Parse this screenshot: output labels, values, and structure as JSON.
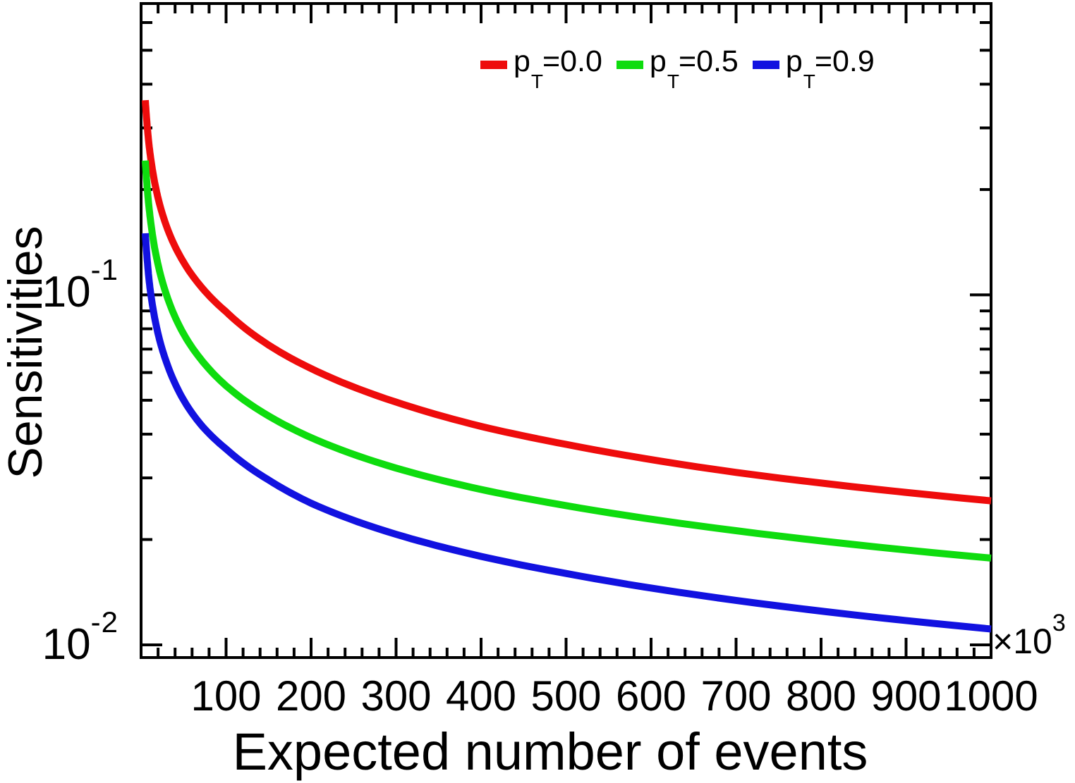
{
  "figure": {
    "background_color": "#ffffff",
    "axis_color": "#000000"
  },
  "chart_data": {
    "type": "line",
    "title": "",
    "xlabel": "Expected number of events",
    "ylabel": "Sensitivities",
    "legend_position": "top-inside",
    "grid": false,
    "x_axis": {
      "scale": "linear",
      "min": 0,
      "max": 1000,
      "unit_multiplier": {
        "prefix": "×10",
        "exponent": "3"
      },
      "major_ticks": [
        100,
        200,
        300,
        400,
        500,
        600,
        700,
        800,
        900,
        1000
      ],
      "minor_tick_step": 20
    },
    "y_axis": {
      "scale": "log",
      "min": 0.0092,
      "max": 0.68,
      "major_ticks": [
        {
          "value": 0.1,
          "label_base": "10",
          "label_exponent": "-1"
        },
        {
          "value": 0.01,
          "label_base": "10",
          "label_exponent": "-2"
        }
      ],
      "minor_ticks": [
        0.6,
        0.5,
        0.4,
        0.3,
        0.2,
        0.09,
        0.08,
        0.07,
        0.06,
        0.05,
        0.04,
        0.03,
        0.02
      ]
    },
    "legend": {
      "entries": [
        {
          "label_pre": "p",
          "label_sub": "T",
          "label_post": "=0.0",
          "color": "#ee0c0c"
        },
        {
          "label_pre": "p",
          "label_sub": "T",
          "label_post": "=0.5",
          "color": "#0edc0e"
        },
        {
          "label_pre": "p",
          "label_sub": "T",
          "label_post": "=0.9",
          "color": "#1212e0"
        }
      ]
    },
    "x_values_thousands": [
      5,
      7,
      10,
      15,
      20,
      30,
      50,
      70,
      100,
      150,
      200,
      300,
      400,
      500,
      700,
      1000
    ],
    "series": [
      {
        "name": "pT=0.0",
        "color": "#ee0c0c",
        "values": [
          0.36,
          0.308,
          0.26,
          0.216,
          0.189,
          0.157,
          0.124,
          0.106,
          0.0895,
          0.0719,
          0.0616,
          0.0494,
          0.0421,
          0.0374,
          0.0311,
          0.0258
        ]
      },
      {
        "name": "pT=0.5",
        "color": "#0edc0e",
        "values": [
          0.242,
          0.205,
          0.172,
          0.1404,
          0.122,
          0.0999,
          0.0774,
          0.0656,
          0.055,
          0.0451,
          0.0391,
          0.032,
          0.0278,
          0.025,
          0.0212,
          0.0177
        ]
      },
      {
        "name": "pT=0.9",
        "color": "#1212e0",
        "values": [
          0.15,
          0.128,
          0.107,
          0.0886,
          0.0774,
          0.0641,
          0.0501,
          0.0427,
          0.0363,
          0.0296,
          0.0254,
          0.0207,
          0.0179,
          0.016,
          0.0134,
          0.0111
        ]
      }
    ]
  }
}
